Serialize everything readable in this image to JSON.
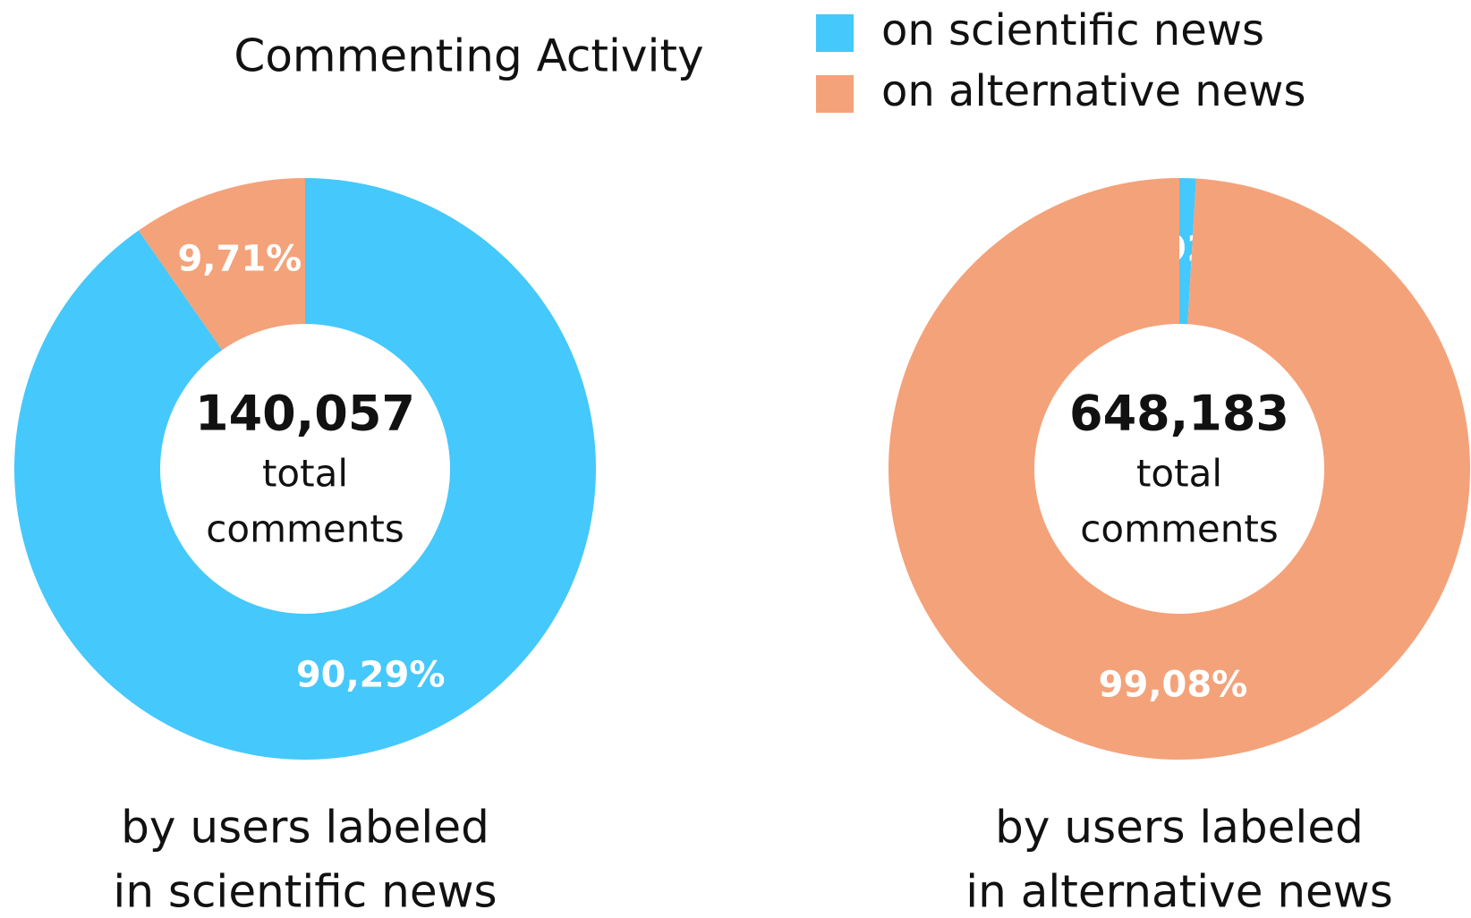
{
  "title": "Commenting Activity",
  "legend": [
    {
      "name": "on scientific news",
      "color": "#45c8fb"
    },
    {
      "name": "on alternative news",
      "color": "#f4a27a"
    }
  ],
  "chart_data": [
    {
      "type": "donut",
      "values": [
        90.29,
        9.71
      ],
      "value_labels": [
        "90,29%",
        "9,71%"
      ],
      "total": {
        "value": 140057,
        "label": "140,057"
      },
      "center_text": [
        "total",
        "comments"
      ],
      "caption": [
        "by users labeled",
        "in scientific news"
      ]
    },
    {
      "type": "donut",
      "values": [
        0.92,
        99.08
      ],
      "value_labels": [
        "0,92%",
        "99,08%"
      ],
      "total": {
        "value": 648183,
        "label": "648,183"
      },
      "center_text": [
        "total",
        "comments"
      ],
      "caption": [
        "by users labeled",
        "in alternative news"
      ]
    }
  ]
}
